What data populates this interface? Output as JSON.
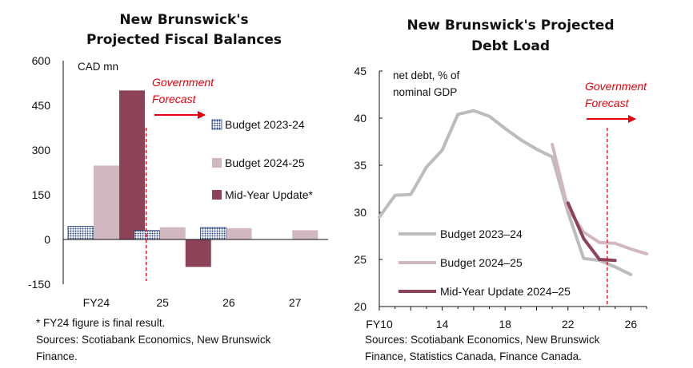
{
  "charts": [
    {
      "title_lines": [
        "New Brunswick's",
        "Projected Fiscal Balances"
      ],
      "unit_label": "CAD mn",
      "forecast_lines": [
        "Government",
        "Forecast"
      ],
      "footnote_lines": [
        "* FY24 figure is final result.",
        "Sources: Scotiabank Economics, New Brunswick",
        "Finance."
      ]
    },
    {
      "title_lines": [
        "New Brunswick's Projected",
        "Debt Load"
      ],
      "unit_lines": [
        "net debt, % of",
        "nominal GDP"
      ],
      "forecast_lines": [
        "Government",
        "Forecast"
      ],
      "source_lines": [
        "Sources: Scotiabank Economics, New Brunswick",
        "Finance, Statistics Canada, Finance Canada."
      ]
    }
  ],
  "chart_data": [
    {
      "type": "bar",
      "title": "New Brunswick's Projected Fiscal Balances",
      "ylabel": "CAD mn",
      "ylim": [
        -150,
        600
      ],
      "yticks": [
        -150,
        0,
        150,
        300,
        450,
        600
      ],
      "categories": [
        "FY24",
        "25",
        "26",
        "27"
      ],
      "series": [
        {
          "name": "Budget 2023-24",
          "color": "#1f3c78",
          "pattern": "dotted",
          "values": [
            44,
            30,
            40,
            null
          ]
        },
        {
          "name": "Budget 2024-25",
          "color": "#d1b7bf",
          "values": [
            248,
            41,
            38,
            31
          ]
        },
        {
          "name": "Mid-Year Update*",
          "color": "#8c4358",
          "values": [
            500,
            -92,
            null,
            null
          ]
        }
      ],
      "forecast_start": "25",
      "grid": false,
      "legend": "right"
    },
    {
      "type": "line",
      "title": "New Brunswick's Projected Debt Load",
      "ylabel": "net debt, % of nominal GDP",
      "ylim": [
        20,
        45
      ],
      "yticks": [
        20,
        25,
        30,
        35,
        40,
        45
      ],
      "xlim": [
        2010,
        2027
      ],
      "xticks": [
        {
          "value": 2010,
          "label": "FY10"
        },
        {
          "value": 2014,
          "label": "14"
        },
        {
          "value": 2018,
          "label": "18"
        },
        {
          "value": 2022,
          "label": "22"
        },
        {
          "value": 2026,
          "label": "26"
        }
      ],
      "forecast_start": 2024.5,
      "series": [
        {
          "name": "Budget 2023–24",
          "color": "#bcbcbc",
          "x": [
            2010,
            2011,
            2012,
            2013,
            2014,
            2015,
            2016,
            2017,
            2018,
            2019,
            2020,
            2021,
            2022,
            2023,
            2024,
            2025,
            2026
          ],
          "y": [
            29.5,
            31.8,
            31.9,
            34.8,
            36.6,
            40.4,
            40.8,
            40.2,
            38.9,
            37.7,
            36.7,
            35.9,
            30.0,
            25.1,
            24.9,
            24.2,
            23.4
          ]
        },
        {
          "name": "Budget 2024–25",
          "color": "#d1b7bf",
          "x": [
            2021,
            2022,
            2023,
            2024,
            2025,
            2026,
            2027
          ],
          "y": [
            37.2,
            30.4,
            27.9,
            26.8,
            26.7,
            26.1,
            25.6
          ]
        },
        {
          "name": "Mid-Year Update 2024–25",
          "color": "#8c4358",
          "x": [
            2022,
            2023,
            2024,
            2025
          ],
          "y": [
            31.0,
            27.2,
            25.0,
            24.9
          ]
        }
      ],
      "grid": false,
      "legend": "bottom-left"
    }
  ]
}
